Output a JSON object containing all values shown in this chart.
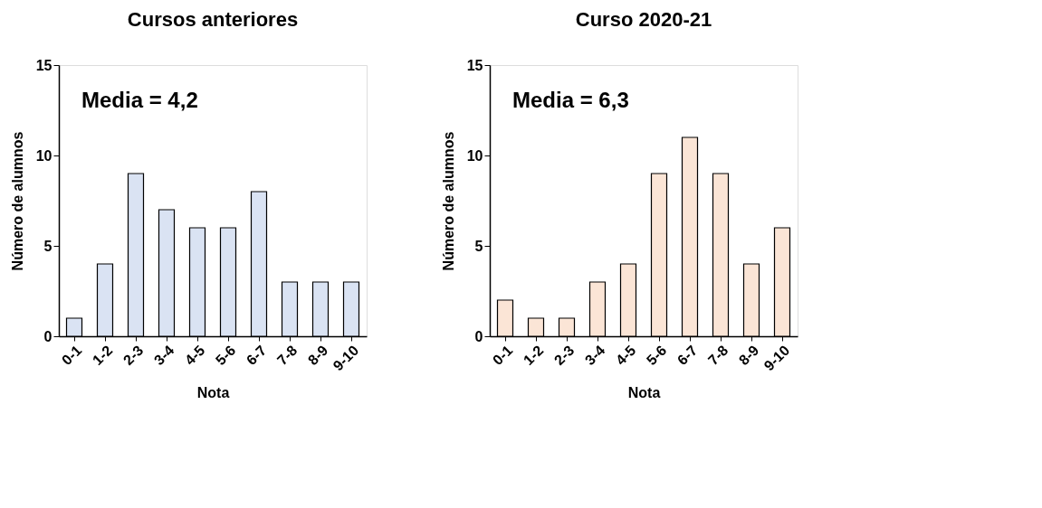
{
  "chart_data": [
    {
      "type": "bar",
      "title": "Cursos anteriores",
      "xlabel": "Nota",
      "ylabel": "Número de alumnos",
      "categories": [
        "0-1",
        "1-2",
        "2-3",
        "3-4",
        "4-5",
        "5-6",
        "6-7",
        "7-8",
        "8-9",
        "9-10"
      ],
      "series": [
        {
          "color": "#dae3f3",
          "values": [
            1,
            4,
            9,
            7,
            6,
            6,
            8,
            3,
            3,
            3
          ]
        }
      ],
      "ylim": [
        0,
        15
      ],
      "yticks": [
        0,
        5,
        10,
        15
      ],
      "grid": false,
      "legend": false,
      "annotations": [
        "Media = 4,2"
      ]
    },
    {
      "type": "bar",
      "title": "Curso 2020-21",
      "xlabel": "Nota",
      "ylabel": "Número de alumnos",
      "categories": [
        "0-1",
        "1-2",
        "2-3",
        "3-4",
        "4-5",
        "5-6",
        "6-7",
        "7-8",
        "8-9",
        "9-10"
      ],
      "series": [
        {
          "color": "#fbe5d6",
          "values": [
            2,
            1,
            1,
            3,
            4,
            9,
            11,
            9,
            4,
            6
          ]
        }
      ],
      "ylim": [
        0,
        15
      ],
      "yticks": [
        0,
        5,
        10,
        15
      ],
      "grid": false,
      "legend": false,
      "annotations": [
        "Media = 6,3"
      ]
    }
  ]
}
